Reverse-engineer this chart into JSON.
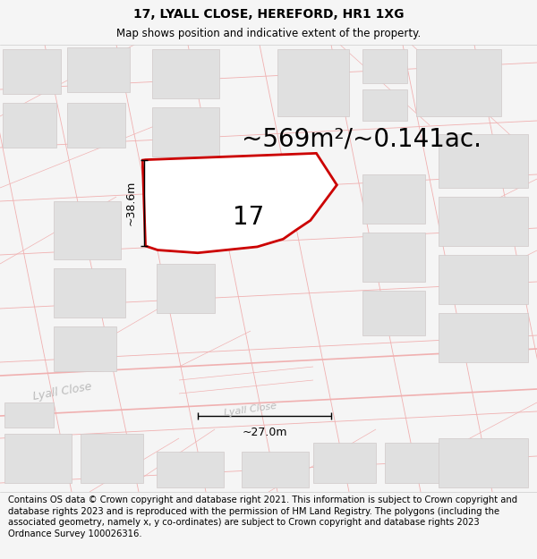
{
  "title_line1": "17, LYALL CLOSE, HEREFORD, HR1 1XG",
  "title_line2": "Map shows position and indicative extent of the property.",
  "area_label": "~569m²/~0.141ac.",
  "property_number": "17",
  "dim_height": "~38.6m",
  "dim_width": "~27.0m",
  "street_label1": "Lyall Close",
  "street_label2": "Lyall Close",
  "copyright_text": "Contains OS data © Crown copyright and database right 2021. This information is subject to Crown copyright and database rights 2023 and is reproduced with the permission of HM Land Registry. The polygons (including the associated geometry, namely x, y co-ordinates) are subject to Crown copyright and database rights 2023 Ordnance Survey 100026316.",
  "bg_color": "#f5f5f5",
  "map_bg": "#ffffff",
  "property_fill": "#ffffff",
  "property_edge": "#cc0000",
  "street_color": "#f0b0b0",
  "building_color": "#e0e0e0",
  "building_edge": "#d0c8c8",
  "title_fontsize": 10,
  "subtitle_fontsize": 8.5,
  "area_fontsize": 20,
  "number_fontsize": 20,
  "dim_fontsize": 9,
  "copyright_fontsize": 7.2,
  "street_label_fontsize": 8,
  "street_label_color": "#bbbbbb"
}
